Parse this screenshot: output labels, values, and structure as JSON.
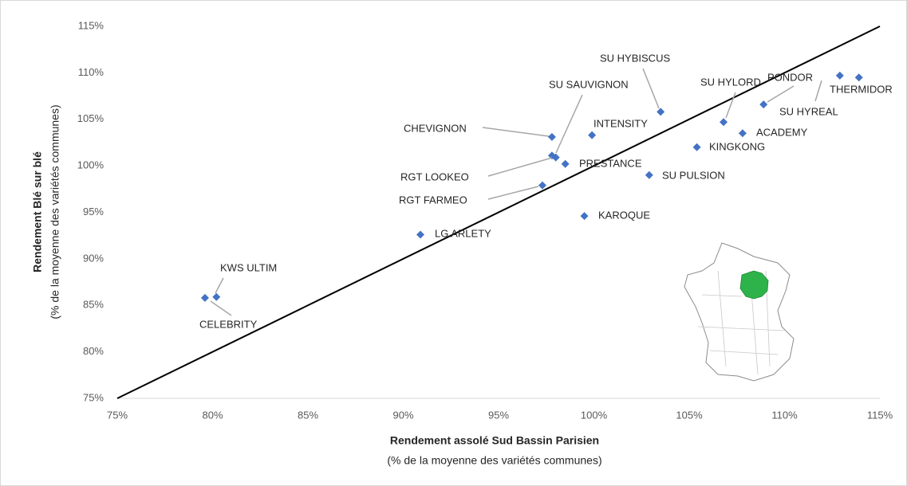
{
  "chart_data": {
    "type": "scatter",
    "color": "#4472c4",
    "labels": [
      "THERMIDOR",
      "SU HYREAL",
      "PONDOR",
      "SU HYLORD",
      "ACADEMY",
      "KINGKONG",
      "SU HYBISCUS",
      "SU PULSION",
      "INTENSITY",
      "CHEVIGNON",
      "SU SAUVIGNON",
      "RGT LOOKEO",
      "PRESTANCE",
      "RGT FARMEO",
      "KAROQUE",
      "LG ARLETY",
      "KWS ULTIM",
      "CELEBRITY"
    ],
    "x": [
      113.9,
      112.9,
      108.9,
      106.8,
      107.8,
      105.4,
      103.5,
      102.9,
      99.9,
      97.8,
      97.8,
      98.0,
      98.5,
      97.3,
      99.5,
      90.9,
      80.2,
      79.6
    ],
    "values": [
      109.5,
      109.7,
      106.6,
      104.7,
      103.5,
      102.0,
      105.8,
      99.0,
      103.3,
      103.1,
      101.1,
      100.9,
      100.2,
      97.9,
      94.6,
      92.6,
      85.9,
      85.8
    ],
    "xlabel": "Rendement assolé Sud Bassin Parisien",
    "xlabel_note": "(% de la moyenne des variétés communes)",
    "ylabel": "Rendement Blé sur blé",
    "ylabel_note": "(% de la moyenne des variétés communes)",
    "xlim": [
      75,
      115
    ],
    "ylim": [
      75,
      115
    ],
    "xticks": [
      {
        "value": 75,
        "label": "75%"
      },
      {
        "value": 80,
        "label": "80%"
      },
      {
        "value": 85,
        "label": "85%"
      },
      {
        "value": 90,
        "label": "90%"
      },
      {
        "value": 95,
        "label": "95%"
      },
      {
        "value": 100,
        "label": "100%"
      },
      {
        "value": 105,
        "label": "105%"
      },
      {
        "value": 110,
        "label": "110%"
      },
      {
        "value": 115,
        "label": "115%"
      }
    ],
    "yticks": [
      {
        "value": 75,
        "label": "75%"
      },
      {
        "value": 80,
        "label": "80%"
      },
      {
        "value": 85,
        "label": "85%"
      },
      {
        "value": 90,
        "label": "90%"
      },
      {
        "value": 95,
        "label": "95%"
      },
      {
        "value": 100,
        "label": "100%"
      },
      {
        "value": 105,
        "label": "105%"
      },
      {
        "value": 110,
        "label": "110%"
      },
      {
        "value": 115,
        "label": "115%"
      }
    ],
    "grid": false
  }
}
